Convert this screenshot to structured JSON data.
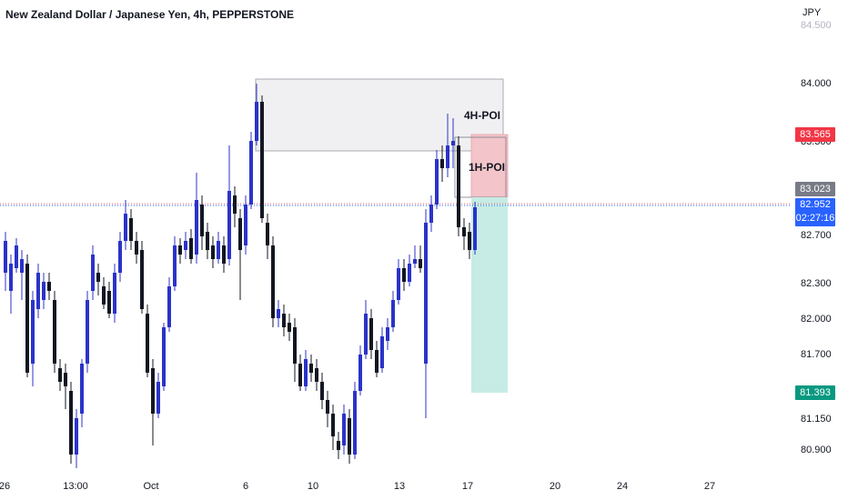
{
  "header": {
    "title": "New Zealand Dollar / Japanese Yen, 4h, PEPPERSTONE"
  },
  "price_axis": {
    "currency": "JPY",
    "top_partial": "84.500",
    "labels": [
      "84.000",
      "83.300",
      "82.700",
      "82.300",
      "82.000",
      "81.700",
      "81.150",
      "80.900"
    ]
  },
  "price_tags": {
    "stop": {
      "value": "83.565",
      "color": "#f23645"
    },
    "entry": {
      "value": "83.023",
      "color": "#787b86"
    },
    "current": {
      "value": "82.952",
      "countdown": "02:27:16",
      "color": "#2962ff"
    },
    "target": {
      "value": "81.393",
      "color": "#089981"
    }
  },
  "time_axis": {
    "labels": [
      "26",
      "13:00",
      "Oct",
      "6",
      "10",
      "13",
      "17",
      "20",
      "24",
      "27"
    ]
  },
  "annotations": {
    "poi_4h": "4H-POI",
    "poi_1h": "1H-POI"
  },
  "colors": {
    "bull": "#2b33c9",
    "bear": "#131722",
    "poi4h_fill": "#f0f0f0",
    "poi1h_fill": "#f0b8be",
    "target_fill": "#b9e8e0"
  }
}
